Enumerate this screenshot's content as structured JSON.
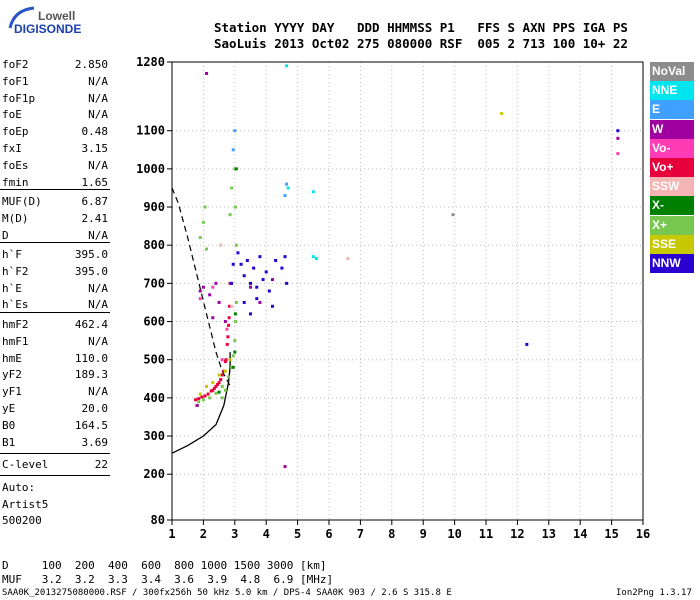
{
  "logo": {
    "line1": "Lowell",
    "line2": "DIGISONDE"
  },
  "header": {
    "line1": "Station YYYY DAY   DDD HHMMSS P1   FFS S AXN PPS IGA PS",
    "line2": "SaoLuis 2013 Oct02 275 080000 RSF  005 2 713 100 10+ 22"
  },
  "params_group1": [
    {
      "k": "foF2",
      "v": "2.850"
    },
    {
      "k": "foF1",
      "v": "N/A"
    },
    {
      "k": "foF1p",
      "v": "N/A"
    },
    {
      "k": "foE",
      "v": "N/A"
    },
    {
      "k": "foEp",
      "v": "0.48"
    },
    {
      "k": "fxI",
      "v": "3.15"
    },
    {
      "k": "foEs",
      "v": "N/A"
    },
    {
      "k": "fmin",
      "v": "1.65"
    }
  ],
  "params_group2": [
    {
      "k": "MUF(D)",
      "v": "6.87"
    },
    {
      "k": "M(D)",
      "v": "2.41"
    },
    {
      "k": "D",
      "v": "N/A"
    }
  ],
  "params_group3": [
    {
      "k": "h`F",
      "v": "395.0"
    },
    {
      "k": "h`F2",
      "v": "395.0"
    },
    {
      "k": "h`E",
      "v": "N/A"
    },
    {
      "k": "h`Es",
      "v": "N/A"
    }
  ],
  "params_group4": [
    {
      "k": "hmF2",
      "v": "462.4"
    },
    {
      "k": "hmF1",
      "v": "N/A"
    },
    {
      "k": "hmE",
      "v": "110.0"
    },
    {
      "k": "yF2",
      "v": "189.3"
    },
    {
      "k": "yF1",
      "v": "N/A"
    },
    {
      "k": "yE",
      "v": "20.0"
    },
    {
      "k": "B0",
      "v": "164.5"
    },
    {
      "k": "B1",
      "v": "3.69"
    }
  ],
  "clevel": {
    "k": "C-level",
    "v": "22"
  },
  "auto": {
    "line1": "Auto:",
    "line2": "Artist5",
    "line3": "500200"
  },
  "legend": [
    {
      "label": "NoVal",
      "color": "#8c8c8c"
    },
    {
      "label": "NNE",
      "color": "#00e5ee"
    },
    {
      "label": "E",
      "color": "#3fa0ff"
    },
    {
      "label": "W",
      "color": "#a000a0"
    },
    {
      "label": "Vo-",
      "color": "#ff3cb4"
    },
    {
      "label": "Vo+",
      "color": "#e8003c"
    },
    {
      "label": "SSW",
      "color": "#f4b4b4"
    },
    {
      "label": "X-",
      "color": "#008000"
    },
    {
      "label": "X+",
      "color": "#78c850"
    },
    {
      "label": "SSE",
      "color": "#c8c800"
    },
    {
      "label": "NNW",
      "color": "#2800d0"
    }
  ],
  "footer": {
    "d_line": "D     100  200  400  600  800 1000 1500 3000 [km]",
    "muf_line": "MUF   3.2  3.2  3.3  3.4  3.6  3.9  4.8  6.9 [MHz]",
    "file_line": "SAA0K_2013275080000.RSF / 300fx256h 50 kHz 5.0 km / DPS-4 SAA0K 903 / 2.6 S 315.8 E",
    "version": "Ion2Png 1.3.17"
  },
  "chart_data": {
    "type": "scatter",
    "xlim": [
      1,
      16
    ],
    "ylim": [
      80,
      1280
    ],
    "xticks": [
      1,
      2,
      3,
      4,
      5,
      6,
      7,
      8,
      9,
      10,
      11,
      12,
      13,
      14,
      15,
      16
    ],
    "yticks": [
      80,
      200,
      300,
      400,
      500,
      600,
      700,
      800,
      900,
      1000,
      1100,
      1280
    ],
    "grid": true,
    "legend_placement": "right",
    "series": [
      {
        "name": "Vo+",
        "color": "#e8003c",
        "points": [
          [
            1.75,
            395
          ],
          [
            1.85,
            398
          ],
          [
            1.95,
            402
          ],
          [
            2.05,
            405
          ],
          [
            2.15,
            410
          ],
          [
            2.25,
            418
          ],
          [
            2.35,
            425
          ],
          [
            2.45,
            435
          ],
          [
            2.55,
            448
          ],
          [
            2.65,
            470
          ],
          [
            2.72,
            500
          ],
          [
            2.76,
            540
          ],
          [
            2.8,
            590
          ],
          [
            2.83,
            640
          ],
          [
            2.85,
            700
          ],
          [
            2.6,
            460
          ],
          [
            2.7,
            495
          ],
          [
            2.5,
            440
          ],
          [
            2.78,
            560
          ],
          [
            2.82,
            610
          ],
          [
            2.4,
            430
          ],
          [
            2.3,
            420
          ]
        ]
      },
      {
        "name": "X+",
        "color": "#78c850",
        "points": [
          [
            1.85,
            390
          ],
          [
            2.0,
            395
          ],
          [
            2.2,
            400
          ],
          [
            2.4,
            412
          ],
          [
            2.6,
            430
          ],
          [
            2.8,
            455
          ],
          [
            2.9,
            480
          ],
          [
            2.95,
            510
          ],
          [
            3.0,
            550
          ],
          [
            3.02,
            600
          ],
          [
            3.05,
            650
          ],
          [
            3.05,
            800
          ],
          [
            3.02,
            900
          ],
          [
            3.0,
            1000
          ],
          [
            2.9,
            950
          ],
          [
            2.85,
            880
          ],
          [
            1.9,
            820
          ],
          [
            2.0,
            860
          ],
          [
            2.05,
            900
          ],
          [
            2.1,
            790
          ],
          [
            2.6,
            400
          ],
          [
            2.7,
            420
          ]
        ]
      },
      {
        "name": "X-",
        "color": "#008000",
        "points": [
          [
            2.95,
            480
          ],
          [
            3.0,
            520
          ],
          [
            3.02,
            620
          ],
          [
            3.05,
            1000
          ],
          [
            1.8,
            380
          ],
          [
            2.5,
            415
          ]
        ]
      },
      {
        "name": "SSE",
        "color": "#c8c800",
        "points": [
          [
            2.1,
            430
          ],
          [
            2.3,
            440
          ],
          [
            2.5,
            460
          ],
          [
            2.7,
            470
          ],
          [
            1.9,
            410
          ],
          [
            2.85,
            500
          ],
          [
            11.5,
            1145
          ]
        ]
      },
      {
        "name": "NNW",
        "color": "#2800d0",
        "points": [
          [
            3.2,
            750
          ],
          [
            3.3,
            720
          ],
          [
            3.4,
            760
          ],
          [
            3.5,
            700
          ],
          [
            3.6,
            740
          ],
          [
            3.7,
            690
          ],
          [
            3.8,
            770
          ],
          [
            3.9,
            710
          ],
          [
            4.0,
            730
          ],
          [
            4.1,
            680
          ],
          [
            4.3,
            760
          ],
          [
            4.5,
            740
          ],
          [
            4.6,
            770
          ],
          [
            4.65,
            700
          ],
          [
            3.3,
            650
          ],
          [
            3.5,
            620
          ],
          [
            3.7,
            660
          ],
          [
            4.2,
            640
          ],
          [
            2.9,
            700
          ],
          [
            2.95,
            750
          ],
          [
            3.1,
            780
          ],
          [
            12.3,
            540
          ],
          [
            15.2,
            1100
          ]
        ]
      },
      {
        "name": "W",
        "color": "#a000a0",
        "points": [
          [
            1.9,
            680
          ],
          [
            2.0,
            690
          ],
          [
            2.2,
            670
          ],
          [
            2.4,
            700
          ],
          [
            2.3,
            610
          ],
          [
            2.5,
            650
          ],
          [
            1.8,
            380
          ],
          [
            2.7,
            600
          ],
          [
            3.5,
            690
          ],
          [
            3.8,
            650
          ],
          [
            4.2,
            710
          ],
          [
            4.6,
            220
          ],
          [
            2.1,
            1250
          ],
          [
            15.2,
            1080
          ]
        ]
      },
      {
        "name": "Vo-",
        "color": "#ff3cb4",
        "points": [
          [
            2.6,
            500
          ],
          [
            2.75,
            580
          ],
          [
            1.9,
            660
          ],
          [
            2.3,
            690
          ],
          [
            15.2,
            1040
          ]
        ]
      },
      {
        "name": "NNE",
        "color": "#00e5ee",
        "points": [
          [
            4.65,
            1270
          ],
          [
            5.5,
            940
          ],
          [
            5.5,
            770
          ],
          [
            5.6,
            765
          ],
          [
            4.7,
            950
          ]
        ]
      },
      {
        "name": "E",
        "color": "#3fa0ff",
        "points": [
          [
            3.0,
            1100
          ],
          [
            2.95,
            1050
          ],
          [
            4.65,
            960
          ],
          [
            4.6,
            930
          ]
        ]
      },
      {
        "name": "SSW",
        "color": "#f4b4b4",
        "points": [
          [
            6.6,
            765
          ],
          [
            2.9,
            640
          ],
          [
            2.55,
            800
          ]
        ]
      },
      {
        "name": "NoVal",
        "color": "#8c8c8c",
        "points": [
          [
            9.95,
            880
          ]
        ]
      }
    ],
    "profile": [
      [
        1,
        255
      ],
      [
        1.5,
        275
      ],
      [
        2.0,
        300
      ],
      [
        2.4,
        330
      ],
      [
        2.65,
        380
      ],
      [
        2.8,
        440
      ],
      [
        2.85,
        480
      ],
      [
        2.85,
        520
      ]
    ],
    "muf_curve": [
      [
        1,
        950
      ],
      [
        1.2,
        910
      ],
      [
        1.5,
        820
      ],
      [
        1.8,
        720
      ],
      [
        2.1,
        620
      ],
      [
        2.4,
        520
      ],
      [
        2.6,
        470
      ],
      [
        2.8,
        440
      ],
      [
        2.85,
        430
      ]
    ]
  }
}
